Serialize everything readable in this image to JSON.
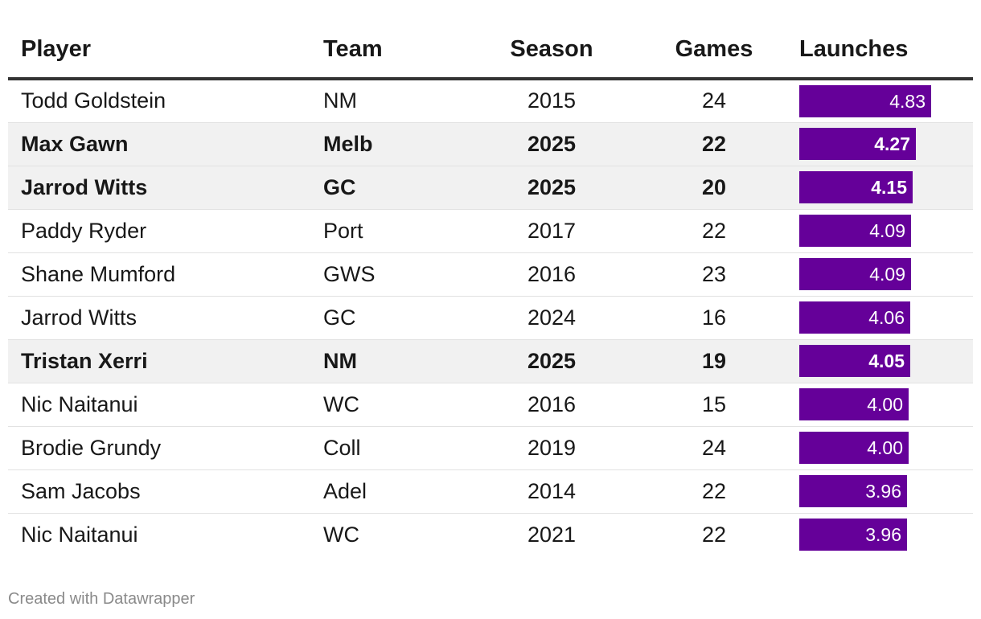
{
  "chart_data": {
    "type": "table",
    "columns": {
      "player": "Player",
      "team": "Team",
      "season": "Season",
      "games": "Games",
      "launches": "Launches"
    },
    "launches_bar_max": 4.83,
    "bar_color": "#650099",
    "highlight_background": "#f1f1f1",
    "rows": [
      {
        "player": "Todd Goldstein",
        "team": "NM",
        "season": "2015",
        "games": "24",
        "launches": 4.83,
        "launches_label": "4.83",
        "highlighted": false
      },
      {
        "player": "Max Gawn",
        "team": "Melb",
        "season": "2025",
        "games": "22",
        "launches": 4.27,
        "launches_label": "4.27",
        "highlighted": true
      },
      {
        "player": "Jarrod Witts",
        "team": "GC",
        "season": "2025",
        "games": "20",
        "launches": 4.15,
        "launches_label": "4.15",
        "highlighted": true
      },
      {
        "player": "Paddy Ryder",
        "team": "Port",
        "season": "2017",
        "games": "22",
        "launches": 4.09,
        "launches_label": "4.09",
        "highlighted": false
      },
      {
        "player": "Shane Mumford",
        "team": "GWS",
        "season": "2016",
        "games": "23",
        "launches": 4.09,
        "launches_label": "4.09",
        "highlighted": false
      },
      {
        "player": "Jarrod Witts",
        "team": "GC",
        "season": "2024",
        "games": "16",
        "launches": 4.06,
        "launches_label": "4.06",
        "highlighted": false
      },
      {
        "player": "Tristan Xerri",
        "team": "NM",
        "season": "2025",
        "games": "19",
        "launches": 4.05,
        "launches_label": "4.05",
        "highlighted": true
      },
      {
        "player": "Nic Naitanui",
        "team": "WC",
        "season": "2016",
        "games": "15",
        "launches": 4.0,
        "launches_label": "4.00",
        "highlighted": false
      },
      {
        "player": "Brodie Grundy",
        "team": "Coll",
        "season": "2019",
        "games": "24",
        "launches": 4.0,
        "launches_label": "4.00",
        "highlighted": false
      },
      {
        "player": "Sam Jacobs",
        "team": "Adel",
        "season": "2014",
        "games": "22",
        "launches": 3.96,
        "launches_label": "3.96",
        "highlighted": false
      },
      {
        "player": "Nic Naitanui",
        "team": "WC",
        "season": "2021",
        "games": "22",
        "launches": 3.96,
        "launches_label": "3.96",
        "highlighted": false
      }
    ]
  },
  "footer": {
    "credit": "Created with Datawrapper"
  }
}
